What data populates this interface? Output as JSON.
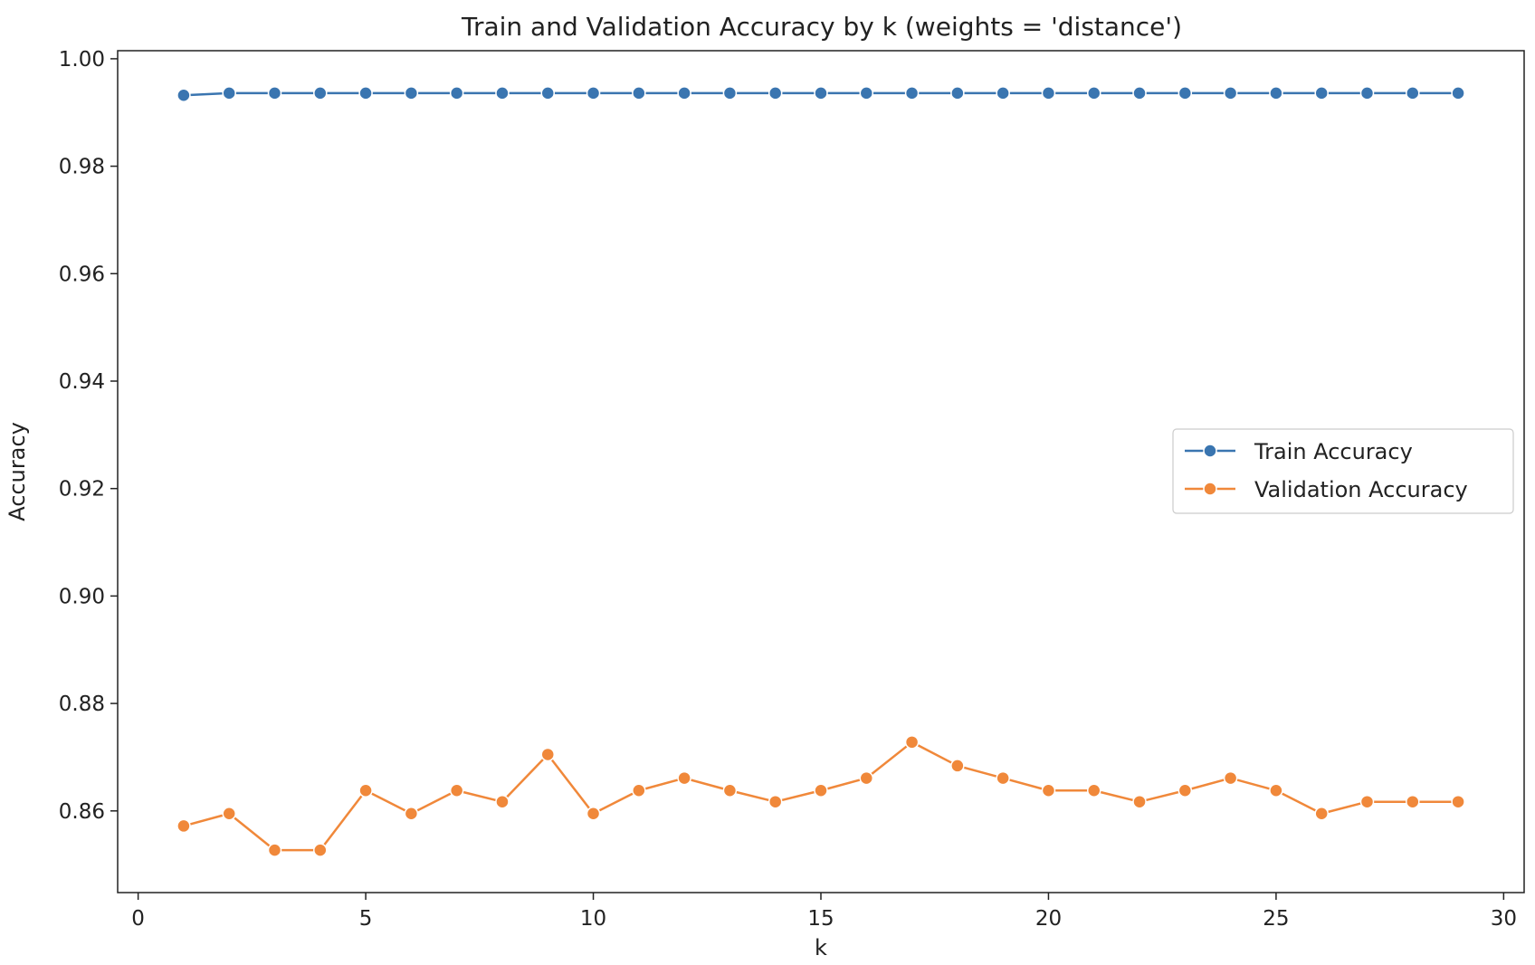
{
  "chart_data": {
    "type": "line",
    "title": "Train and Validation Accuracy by k (weights = 'distance')",
    "xlabel": "k",
    "ylabel": "Accuracy",
    "xlim": [
      -0.45,
      30.45
    ],
    "ylim": [
      0.8448,
      1.0015
    ],
    "xticks": [
      0,
      5,
      10,
      15,
      20,
      25,
      30
    ],
    "yticks": [
      0.86,
      0.88,
      0.9,
      0.92,
      0.94,
      0.96,
      0.98,
      1.0
    ],
    "ytick_labels": [
      "0.86",
      "0.88",
      "0.90",
      "0.92",
      "0.94",
      "0.96",
      "0.98",
      "1.00"
    ],
    "grid": false,
    "legend_position": "center-right",
    "x": [
      1,
      2,
      3,
      4,
      5,
      6,
      7,
      8,
      9,
      10,
      11,
      12,
      13,
      14,
      15,
      16,
      17,
      18,
      19,
      20,
      21,
      22,
      23,
      24,
      25,
      26,
      27,
      28,
      29
    ],
    "series": [
      {
        "name": "Train Accuracy",
        "color": "#3a75b0",
        "marker": "circle",
        "values": [
          0.9932,
          0.9936,
          0.9936,
          0.9936,
          0.9936,
          0.9936,
          0.9936,
          0.9936,
          0.9936,
          0.9936,
          0.9936,
          0.9936,
          0.9936,
          0.9936,
          0.9936,
          0.9936,
          0.9936,
          0.9936,
          0.9936,
          0.9936,
          0.9936,
          0.9936,
          0.9936,
          0.9936,
          0.9936,
          0.9936,
          0.9936,
          0.9936,
          0.9936
        ]
      },
      {
        "name": "Validation Accuracy",
        "color": "#f0883a",
        "marker": "circle",
        "values": [
          0.8572,
          0.8595,
          0.8527,
          0.8527,
          0.8638,
          0.8595,
          0.8638,
          0.8617,
          0.8705,
          0.8595,
          0.8638,
          0.8661,
          0.8638,
          0.8617,
          0.8638,
          0.8661,
          0.8728,
          0.8684,
          0.8661,
          0.8638,
          0.8638,
          0.8617,
          0.8638,
          0.8661,
          0.8638,
          0.8595,
          0.8617,
          0.8617,
          0.8617
        ]
      }
    ]
  }
}
